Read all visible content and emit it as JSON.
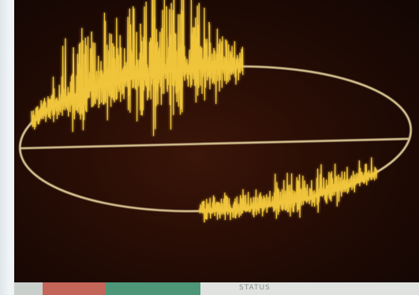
{
  "scene": {
    "type": "oscilloscope photograph",
    "colors": {
      "trace": "#f0c53a",
      "trace_glow": "#ffd85a",
      "axis": "#e7d39a",
      "background": "#1c0904"
    }
  },
  "caption": {
    "strip_text": "STATUS"
  }
}
